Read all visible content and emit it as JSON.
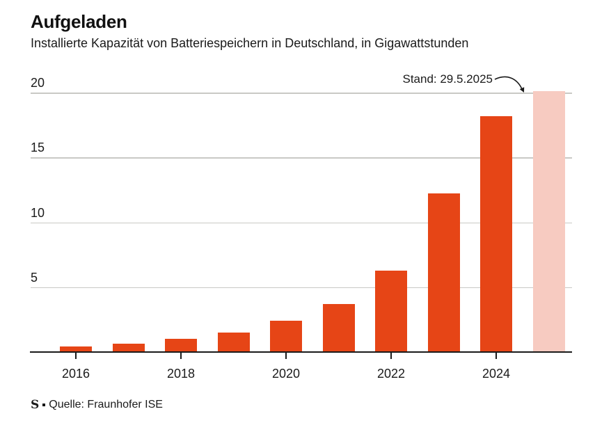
{
  "header": {
    "title": "Aufgeladen",
    "subtitle": "Installierte Kapazität von Batteriespeichern in Deutschland, in Gigawattstunden"
  },
  "annotation": {
    "label": "Stand: 29.5.2025"
  },
  "source": {
    "logo": "S",
    "label": "Quelle: Fraunhofer ISE"
  },
  "colors": {
    "bar": "#e64516",
    "bar_highlight": "#f7cbc1",
    "gridline": "#c9c9c5",
    "axis": "#1a1a1a",
    "text": "#1a1a1a"
  },
  "chart_data": {
    "type": "bar",
    "title": "Aufgeladen",
    "subtitle": "Installierte Kapazität von Batteriespeichern in Deutschland, in Gigawattstunden",
    "unit": "Gigawattstunden",
    "categories": [
      2016,
      2017,
      2018,
      2019,
      2020,
      2021,
      2022,
      2023,
      2024,
      2025
    ],
    "values": [
      0.44,
      0.66,
      1.0,
      1.5,
      2.4,
      3.7,
      6.3,
      12.2,
      18.2,
      20.1
    ],
    "highlight_index": 9,
    "highlight_note": "Stand: 29.5.2025",
    "ylim": [
      0,
      20
    ],
    "yticks": [
      5,
      10,
      15,
      20
    ],
    "xticks": [
      2016,
      2018,
      2020,
      2022,
      2024
    ],
    "grid": true,
    "legend": null,
    "source": "Quelle: Fraunhofer ISE"
  }
}
